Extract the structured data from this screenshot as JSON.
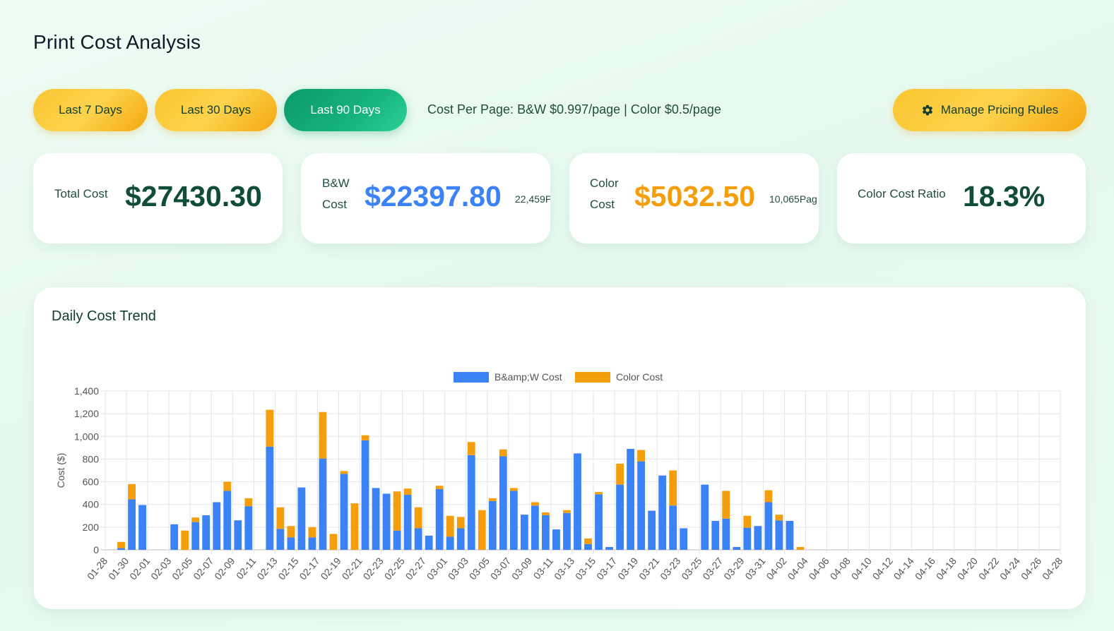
{
  "page": {
    "title": "Print Cost Analysis"
  },
  "toolbar": {
    "range_7": "Last 7 Days",
    "range_30": "Last 30 Days",
    "range_90": "Last 90 Days",
    "cost_per_page": "Cost Per Page: B&W $0.997/page | Color $0.5/page",
    "manage_rules": "Manage Pricing Rules",
    "manage_icon": "gear-icon",
    "active_range": "Last 90 Days"
  },
  "summary": {
    "total": {
      "label": "Total Cost",
      "value": "$27430.30"
    },
    "bw": {
      "label_line1": "B&W",
      "label_line2": "Cost",
      "value": "$22397.80",
      "pages": "22,459P"
    },
    "color": {
      "label_line1": "Color",
      "label_line2": "Cost",
      "value": "$5032.50",
      "pages": "10,065Pag"
    },
    "ratio": {
      "label": "Color Cost Ratio",
      "value": "18.3%"
    }
  },
  "colors": {
    "bw": "#3b82f6",
    "color": "#f59e0b",
    "total_value": "#0f4c3a",
    "bw_value": "#3b82f6",
    "color_value": "#f59e0b",
    "ratio_value": "#0f4c3a"
  },
  "chart_data": {
    "type": "bar",
    "stacked": true,
    "title": "Daily Cost Trend",
    "ylabel": "Cost ($)",
    "ylim": [
      0,
      1400
    ],
    "yticks": [
      "0",
      "200",
      "400",
      "600",
      "800",
      "1,000",
      "1,200",
      "1,400"
    ],
    "grid": true,
    "legend_position": "top",
    "x": [
      "01-28",
      "01-29",
      "01-30",
      "01-31",
      "02-01",
      "02-02",
      "02-03",
      "02-04",
      "02-05",
      "02-06",
      "02-07",
      "02-08",
      "02-09",
      "02-10",
      "02-11",
      "02-12",
      "02-13",
      "02-14",
      "02-15",
      "02-16",
      "02-17",
      "02-18",
      "02-19",
      "02-20",
      "02-21",
      "02-22",
      "02-23",
      "02-24",
      "02-25",
      "02-26",
      "02-27",
      "02-28",
      "03-01",
      "03-02",
      "03-03",
      "03-04",
      "03-05",
      "03-06",
      "03-07",
      "03-08",
      "03-09",
      "03-10",
      "03-11",
      "03-12",
      "03-13",
      "03-14",
      "03-15",
      "03-16",
      "03-17",
      "03-18",
      "03-19",
      "03-20",
      "03-21",
      "03-22",
      "03-23",
      "03-24",
      "03-25",
      "03-26",
      "03-27",
      "03-28",
      "03-29",
      "03-30",
      "03-31",
      "04-01",
      "04-02",
      "04-03",
      "04-04",
      "04-05",
      "04-06",
      "04-07",
      "04-08",
      "04-09",
      "04-10",
      "04-11",
      "04-12",
      "04-13",
      "04-14",
      "04-15",
      "04-16",
      "04-17",
      "04-18",
      "04-19",
      "04-20",
      "04-21",
      "04-22",
      "04-23",
      "04-24",
      "04-25",
      "04-26",
      "04-27",
      "04-28"
    ],
    "x_tick_labels": [
      "01-28",
      "01-30",
      "02-01",
      "02-03",
      "02-05",
      "02-07",
      "02-09",
      "02-11",
      "02-13",
      "02-15",
      "02-17",
      "02-19",
      "02-21",
      "02-23",
      "02-25",
      "02-27",
      "03-01",
      "03-03",
      "03-05",
      "03-07",
      "03-09",
      "03-11",
      "03-13",
      "03-15",
      "03-17",
      "03-19",
      "03-21",
      "03-23",
      "03-25",
      "03-27",
      "03-29",
      "03-31",
      "04-02",
      "04-04",
      "04-06",
      "04-08",
      "04-10",
      "04-12",
      "04-14",
      "04-16",
      "04-18",
      "04-20",
      "04-22",
      "04-24",
      "04-26",
      "04-28"
    ],
    "series": [
      {
        "name": "B&amp;W Cost",
        "values": [
          0,
          15,
          445,
          395,
          0,
          0,
          225,
          0,
          245,
          305,
          420,
          520,
          260,
          385,
          0,
          910,
          185,
          110,
          550,
          110,
          805,
          0,
          670,
          0,
          965,
          545,
          495,
          170,
          485,
          190,
          125,
          535,
          115,
          190,
          835,
          0,
          430,
          825,
          520,
          310,
          390,
          305,
          180,
          325,
          850,
          50,
          490,
          25,
          575,
          890,
          780,
          345,
          655,
          390,
          190,
          0,
          575,
          255,
          275,
          25,
          195,
          210,
          420,
          260,
          255,
          0,
          0,
          0,
          0,
          0,
          0,
          0,
          0,
          0,
          0,
          0,
          0,
          0,
          0,
          0,
          0,
          0,
          0,
          0,
          0,
          0,
          0,
          0,
          0,
          0,
          0
        ]
      },
      {
        "name": "Color Cost",
        "values": [
          0,
          55,
          135,
          0,
          0,
          0,
          0,
          170,
          40,
          0,
          0,
          80,
          0,
          70,
          0,
          325,
          190,
          100,
          0,
          90,
          410,
          140,
          25,
          410,
          45,
          0,
          0,
          345,
          55,
          185,
          0,
          30,
          185,
          100,
          115,
          350,
          25,
          60,
          25,
          0,
          30,
          25,
          0,
          25,
          0,
          50,
          20,
          0,
          185,
          0,
          100,
          0,
          0,
          310,
          0,
          0,
          0,
          0,
          245,
          0,
          105,
          0,
          105,
          50,
          0,
          25,
          0,
          0,
          0,
          0,
          0,
          0,
          0,
          0,
          0,
          0,
          0,
          0,
          0,
          0,
          0,
          0,
          0,
          0,
          0,
          0,
          0,
          0,
          0,
          0,
          0
        ]
      }
    ]
  }
}
